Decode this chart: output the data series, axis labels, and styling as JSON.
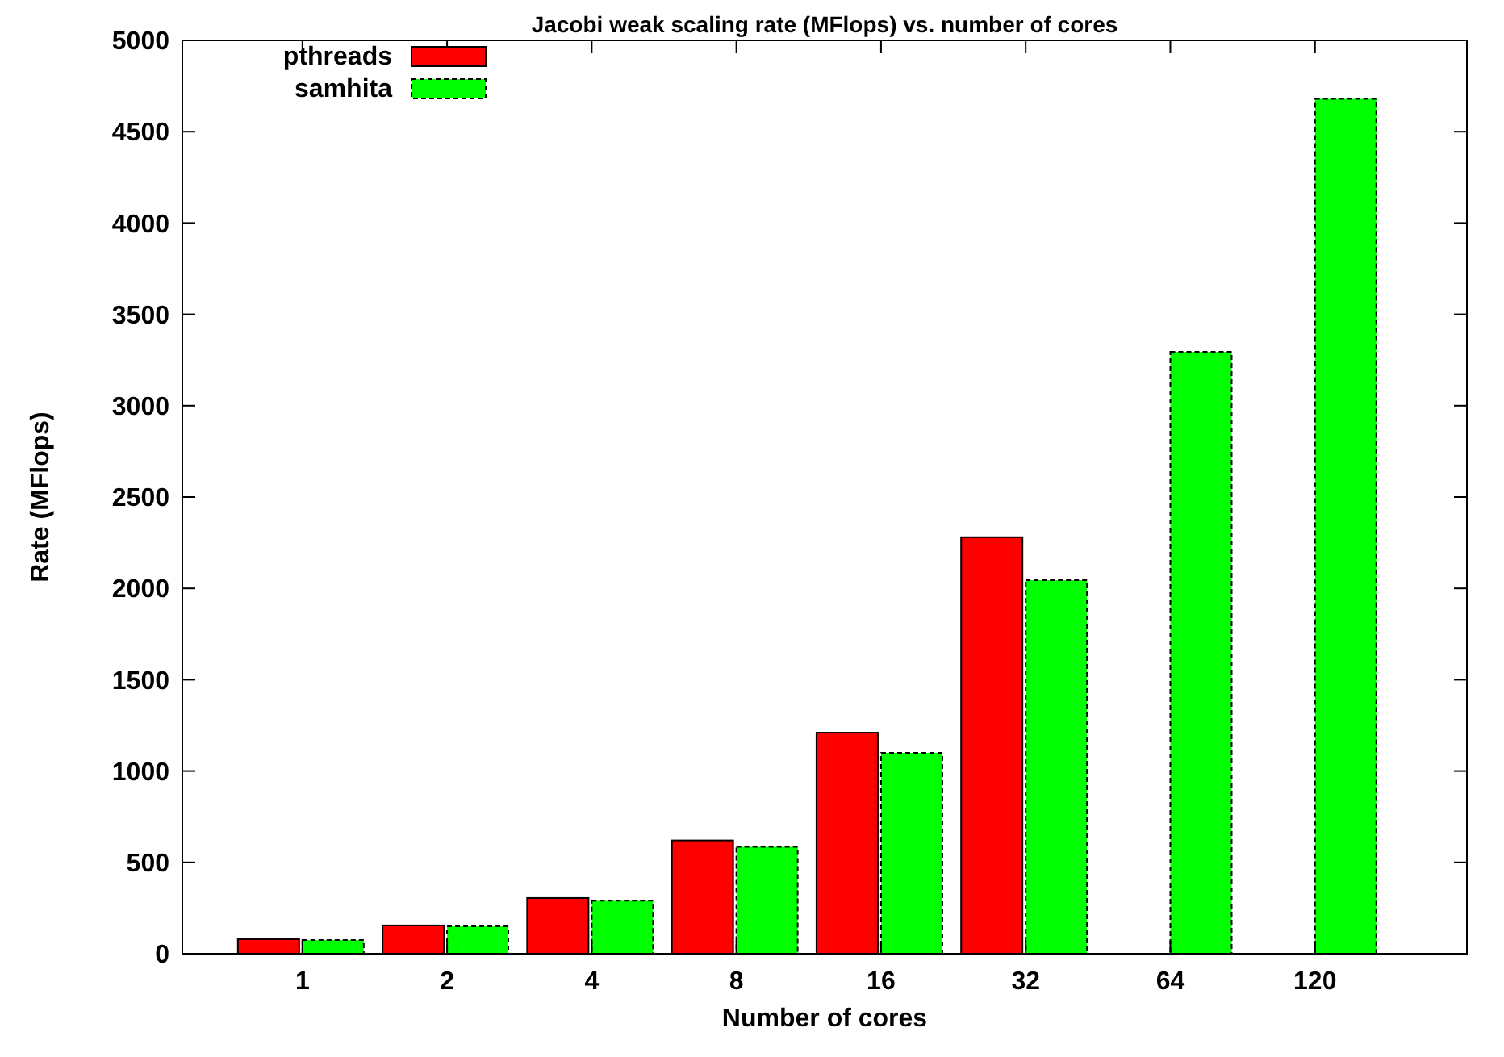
{
  "chart_data": {
    "type": "bar",
    "title": "Jacobi weak scaling rate (MFlops) vs. number of cores",
    "xlabel": "Number of cores",
    "ylabel": "Rate (MFlops)",
    "categories": [
      "1",
      "2",
      "4",
      "8",
      "16",
      "32",
      "64",
      "120"
    ],
    "series": [
      {
        "name": "pthreads",
        "color": "#ff0000",
        "values": [
          80,
          155,
          305,
          620,
          1210,
          2280,
          null,
          null
        ]
      },
      {
        "name": "samhita",
        "color": "#00ff00",
        "values": [
          75,
          150,
          290,
          585,
          1100,
          2045,
          3295,
          4680
        ]
      }
    ],
    "ylim": [
      0,
      5000
    ],
    "yticks": [
      0,
      500,
      1000,
      1500,
      2000,
      2500,
      3000,
      3500,
      4000,
      4500,
      5000
    ],
    "legend": "top left"
  }
}
